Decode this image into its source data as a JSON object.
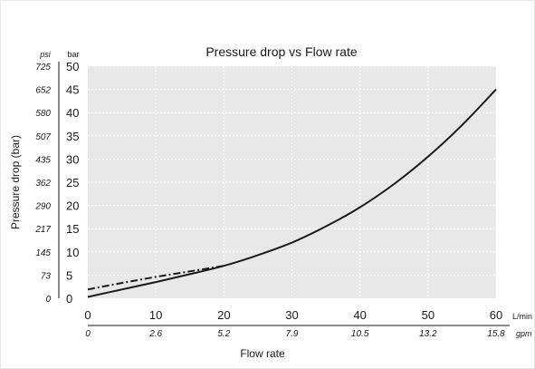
{
  "chart_data": {
    "type": "line",
    "title": "Pressure drop vs Flow rate",
    "xlabel": "Flow rate",
    "ylabel": "Pressure drop (bar)",
    "x_unit_primary": "L/min",
    "x_unit_secondary": "gpm",
    "y_unit_primary": "bar",
    "y_unit_secondary": "psi",
    "xlim": [
      0,
      60
    ],
    "ylim": [
      0,
      50
    ],
    "x_ticks": [
      "0",
      "10",
      "20",
      "30",
      "40",
      "50",
      "60"
    ],
    "x_ticks_secondary": [
      "0",
      "2.6",
      "5.2",
      "7.9",
      "10.5",
      "13.2",
      "15.8"
    ],
    "y_ticks": [
      "0",
      "5",
      "10",
      "15",
      "20",
      "25",
      "30",
      "35",
      "40",
      "45",
      "50"
    ],
    "y_ticks_secondary": [
      "0",
      "73",
      "145",
      "217",
      "290",
      "362",
      "435",
      "507",
      "580",
      "652",
      "725"
    ],
    "grid": true,
    "plot_background": "#e8e8e8",
    "line_color": "#1a1a1a",
    "series": [
      {
        "style": "solid",
        "x": [
          0,
          5,
          10,
          15,
          20,
          25,
          30,
          35,
          40,
          45,
          50,
          55,
          60
        ],
        "y": [
          0.3,
          1.9,
          3.5,
          5.2,
          7.0,
          9.3,
          12.0,
          15.5,
          19.6,
          24.6,
          30.5,
          37.3,
          45.0
        ]
      },
      {
        "style": "dash-dot",
        "x": [
          0,
          5,
          10,
          15,
          20
        ],
        "y": [
          1.9,
          3.3,
          4.6,
          5.8,
          7.0
        ]
      }
    ]
  }
}
